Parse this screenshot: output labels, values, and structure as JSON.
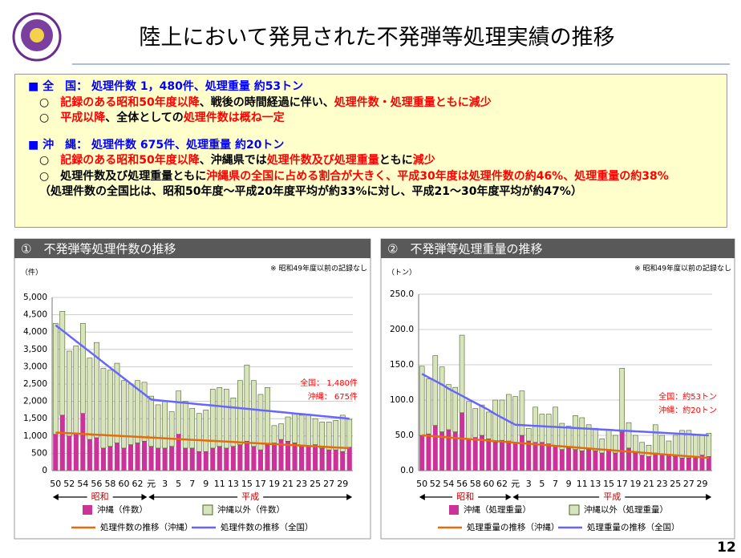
{
  "header": {
    "title": "陸上において発見された不発弾等処理実績の推移",
    "page_number": "12"
  },
  "summary": [
    {
      "heading": "■ 全　国： 処理件数 1，480件、処理重量 約53トン",
      "items": [
        [
          {
            "text": "○　",
            "color": "#000000"
          },
          {
            "text": "記録のある昭和50年度以降",
            "color": "#ff0000"
          },
          {
            "text": "、戦後の時間経過に伴い、",
            "color": "#000000"
          },
          {
            "text": "処理件数・処理重量ともに減少",
            "color": "#ff0000"
          }
        ],
        [
          {
            "text": "○　",
            "color": "#000000"
          },
          {
            "text": "平成以降",
            "color": "#ff0000"
          },
          {
            "text": "、全体としての",
            "color": "#000000"
          },
          {
            "text": "処理件数は概ね一定",
            "color": "#ff0000"
          }
        ]
      ]
    },
    {
      "heading": "■ 沖　縄： 処理件数 675件、処理重量 約20トン",
      "items": [
        [
          {
            "text": "○　",
            "color": "#000000"
          },
          {
            "text": "記録のある昭和50年度以降",
            "color": "#ff0000"
          },
          {
            "text": "、沖縄県では",
            "color": "#000000"
          },
          {
            "text": "処理件数及び処理重量",
            "color": "#ff0000"
          },
          {
            "text": "ともに",
            "color": "#000000"
          },
          {
            "text": "減少",
            "color": "#ff0000"
          }
        ],
        [
          {
            "text": "○　",
            "color": "#000000"
          },
          {
            "text": "処理件数及び処理重量ともに",
            "color": "#000000"
          },
          {
            "text": "沖縄県の全国に占める割合が大きく、平成30年度は処理件数の約46%、処理重量の約38%",
            "color": "#ff0000"
          }
        ],
        [
          {
            "text": "（処理件数の全国比は、昭和50年度～平成20年度平均が約33%に対し、平成21～30年度平均が約47%）",
            "color": "#000000"
          }
        ]
      ]
    }
  ],
  "chart_data": [
    {
      "type": "bar",
      "stacked": true,
      "title": "①　不発弾等処理件数の推移",
      "note": "※ 昭和49年度以前の記録なし",
      "unit_label": "（件）",
      "categories": [
        "50",
        null,
        "52",
        null,
        "54",
        null,
        "56",
        null,
        "58",
        null,
        "60",
        null,
        "62",
        null,
        "元",
        null,
        "3",
        null,
        "5",
        null,
        "7",
        null,
        "9",
        null,
        "11",
        null,
        "13",
        null,
        "15",
        null,
        "17",
        null,
        "19",
        null,
        "21",
        null,
        "23",
        null,
        "25",
        null,
        "27",
        null,
        "29",
        null
      ],
      "eras": [
        "昭和",
        "平成"
      ],
      "ylim": [
        0,
        5000
      ],
      "yticks": [
        0,
        500,
        {
          "value": 1000,
          "label": "1,000"
        },
        {
          "value": 1500,
          "label": "1,500"
        },
        {
          "value": 2000,
          "label": "2,000"
        },
        {
          "value": 2500,
          "label": "2,500"
        },
        {
          "value": 3000,
          "label": "3,000"
        },
        {
          "value": 3500,
          "label": "3,500"
        },
        {
          "value": 4000,
          "label": "4,000"
        },
        {
          "value": 4500,
          "label": "4,500"
        },
        {
          "value": 5000,
          "label": "5,000"
        }
      ],
      "grid": true,
      "annotations": [
        "全国：  1,480件",
        "沖縄：     675件"
      ],
      "annotation_color": "#ff0000",
      "series": [
        {
          "name": "沖縄（件数）",
          "type": "bar",
          "color": "#cc3399",
          "values": [
            1050,
            1600,
            1000,
            1050,
            1650,
            900,
            950,
            650,
            700,
            800,
            650,
            750,
            800,
            850,
            700,
            650,
            650,
            700,
            1050,
            650,
            650,
            550,
            550,
            650,
            700,
            650,
            700,
            750,
            850,
            700,
            600,
            750,
            800,
            900,
            850,
            800,
            700,
            700,
            750,
            650,
            600,
            600,
            550,
            675
          ]
        },
        {
          "name": "沖縄以外（件数）",
          "type": "bar",
          "color": "#d8e4bc",
          "values": [
            3200,
            3000,
            2450,
            2550,
            2600,
            2350,
            2750,
            2300,
            2200,
            2300,
            1950,
            1750,
            1800,
            1700,
            1450,
            1250,
            1350,
            1000,
            1250,
            1350,
            1150,
            1100,
            1200,
            1700,
            1700,
            1700,
            1400,
            1850,
            2200,
            1900,
            1600,
            1650,
            500,
            450,
            700,
            850,
            900,
            900,
            750,
            750,
            800,
            850,
            1050,
            805
          ]
        },
        {
          "name": "処理件数の推移（沖縄）",
          "type": "line",
          "color": "#e46c0a",
          "values": [
            1100,
            1090,
            1079,
            1069,
            1058,
            1048,
            1037,
            1027,
            1016,
            1006,
            995,
            985,
            974,
            964,
            953,
            943,
            932,
            922,
            911,
            901,
            890,
            880,
            869,
            859,
            848,
            838,
            827,
            817,
            806,
            796,
            785,
            775,
            764,
            754,
            743,
            733,
            722,
            712,
            701,
            691,
            680,
            670,
            659,
            649
          ]
        },
        {
          "name": "処理件数の推移（全国）",
          "type": "line",
          "color": "#6666ff",
          "values": [
            4200,
            4046,
            3893,
            3739,
            3586,
            3432,
            3279,
            3125,
            2971,
            2818,
            2664,
            2511,
            2357,
            2204,
            2050,
            2031,
            2012,
            1993,
            1974,
            1955,
            1936,
            1917,
            1898,
            1879,
            1860,
            1841,
            1822,
            1803,
            1784,
            1765,
            1746,
            1727,
            1708,
            1689,
            1670,
            1651,
            1632,
            1613,
            1594,
            1575,
            1556,
            1537,
            1518,
            1499
          ]
        }
      ]
    },
    {
      "type": "bar",
      "stacked": true,
      "title": "②　不発弾等処理重量の推移",
      "note": "※ 昭和49年度以前の記録なし",
      "unit_label": "（トン）",
      "categories": [
        "50",
        null,
        "52",
        null,
        "54",
        null,
        "56",
        null,
        "58",
        null,
        "60",
        null,
        "62",
        null,
        "元",
        null,
        "3",
        null,
        "5",
        null,
        "7",
        null,
        "9",
        null,
        "11",
        null,
        "13",
        null,
        "15",
        null,
        "17",
        null,
        "19",
        null,
        "21",
        null,
        "23",
        null,
        "25",
        null,
        "27",
        null,
        "29",
        null
      ],
      "eras": [
        "昭和",
        "平成"
      ],
      "ylim": [
        0,
        250
      ],
      "yticks": [
        {
          "value": 0,
          "label": "0.0"
        },
        {
          "value": 50,
          "label": "50.0"
        },
        {
          "value": 100,
          "label": "100.0"
        },
        {
          "value": 150,
          "label": "150.0"
        },
        {
          "value": 200,
          "label": "200.0"
        },
        {
          "value": 250,
          "label": "250.0"
        }
      ],
      "grid": true,
      "annotations": [
        "全国：約53トン",
        "沖縄：約20トン"
      ],
      "annotation_color": "#ff0000",
      "series": [
        {
          "name": "沖縄（処理重量）",
          "type": "bar",
          "color": "#cc3399",
          "values": [
            50,
            52,
            64,
            55,
            58,
            55,
            82,
            45,
            47,
            50,
            45,
            40,
            43,
            42,
            40,
            50,
            42,
            40,
            40,
            38,
            35,
            30,
            32,
            30,
            28,
            30,
            28,
            25,
            30,
            25,
            55,
            32,
            25,
            22,
            20,
            25,
            23,
            22,
            20,
            18,
            18,
            20,
            22,
            20
          ]
        },
        {
          "name": "沖縄以外（処理重量）",
          "type": "bar",
          "color": "#d8e4bc",
          "values": [
            98,
            78,
            99,
            92,
            64,
            63,
            110,
            53,
            41,
            43,
            38,
            60,
            57,
            66,
            65,
            63,
            18,
            50,
            40,
            42,
            55,
            37,
            31,
            48,
            47,
            35,
            32,
            20,
            28,
            25,
            90,
            36,
            25,
            18,
            16,
            40,
            27,
            20,
            30,
            39,
            39,
            30,
            28,
            33
          ]
        },
        {
          "name": "処理重量の推移（沖縄）",
          "type": "line",
          "color": "#e46c0a",
          "values": [
            50,
            49.3,
            48.5,
            47.8,
            47,
            46.3,
            45.5,
            44.8,
            44,
            43.3,
            42.6,
            41.8,
            41.1,
            40.3,
            39.6,
            38.8,
            38.1,
            37.4,
            36.6,
            35.9,
            35.1,
            34.4,
            33.6,
            32.9,
            32.1,
            31.4,
            30.7,
            29.9,
            29.2,
            28.4,
            27.7,
            26.9,
            26.2,
            25.4,
            24.7,
            23.9,
            23.2,
            22.5,
            21.7,
            21,
            20.2,
            19.5,
            18.7,
            18
          ]
        },
        {
          "name": "処理重量の推移（全国）",
          "type": "line",
          "color": "#6666ff",
          "values": [
            137,
            132,
            127,
            122,
            116,
            111,
            106,
            101,
            96,
            91,
            86,
            80,
            75,
            70,
            65,
            64.5,
            64,
            63.4,
            62.9,
            62.4,
            61.9,
            61.4,
            60.9,
            60.3,
            59.8,
            59.3,
            58.8,
            58.3,
            57.8,
            57.2,
            56.7,
            56.2,
            55.7,
            55.2,
            54.7,
            54.1,
            53.6,
            53.1,
            52.6,
            52.1,
            51.6,
            51,
            50.5,
            50
          ]
        }
      ]
    }
  ]
}
